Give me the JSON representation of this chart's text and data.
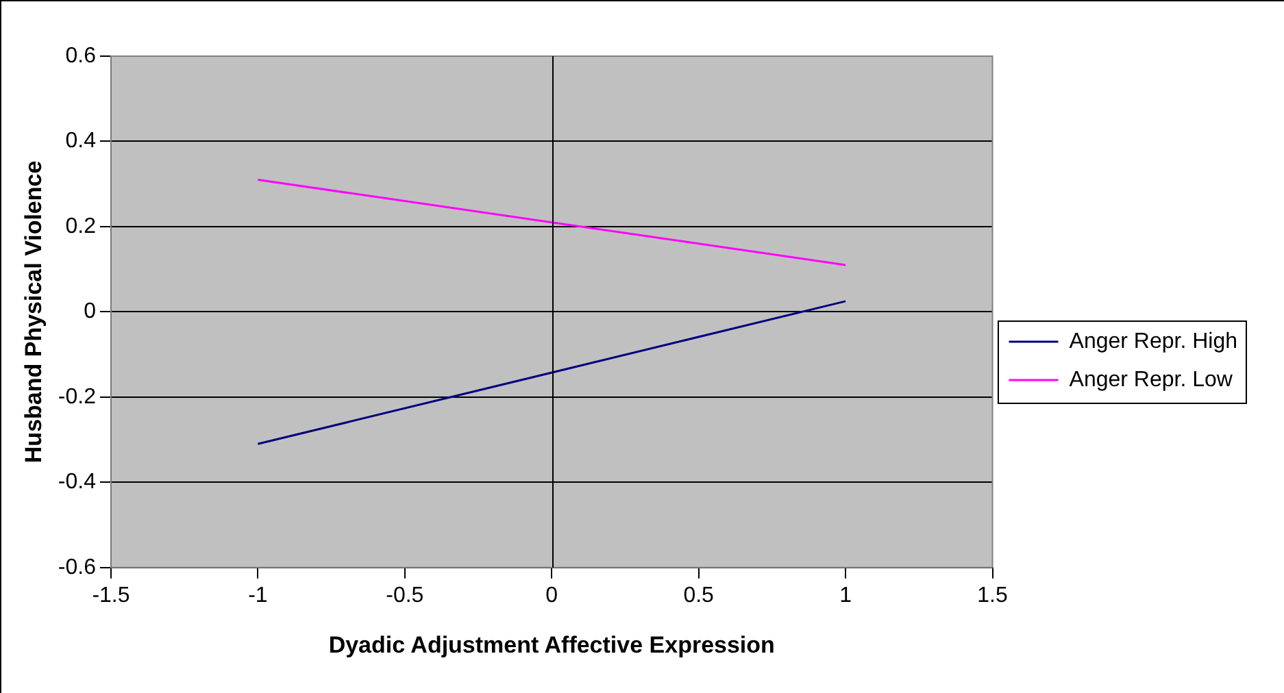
{
  "chart_data": {
    "type": "line",
    "xlabel": "Dyadic Adjustment Affective Expression",
    "ylabel": "Husband Physical Violence",
    "x": [
      -1,
      1
    ],
    "series": [
      {
        "name": "Anger Repr. High",
        "color": "#000080",
        "values": [
          -0.31,
          0.025
        ]
      },
      {
        "name": "Anger Repr. Low",
        "color": "#ff00ff",
        "values": [
          0.31,
          0.11
        ]
      }
    ],
    "xlim": [
      -1.5,
      1.5
    ],
    "xticks": [
      -1.5,
      -1,
      -0.5,
      0,
      0.5,
      1,
      1.5
    ],
    "ylim": [
      -0.6,
      0.6
    ],
    "yticks": [
      -0.6,
      -0.4,
      -0.2,
      0,
      0.2,
      0.4,
      0.6
    ],
    "ref_lines": [
      {
        "axis": "x",
        "value": 0,
        "color": "#000000"
      }
    ],
    "grid": "y",
    "legend": "right",
    "marker": "none",
    "line_style": "solid"
  }
}
